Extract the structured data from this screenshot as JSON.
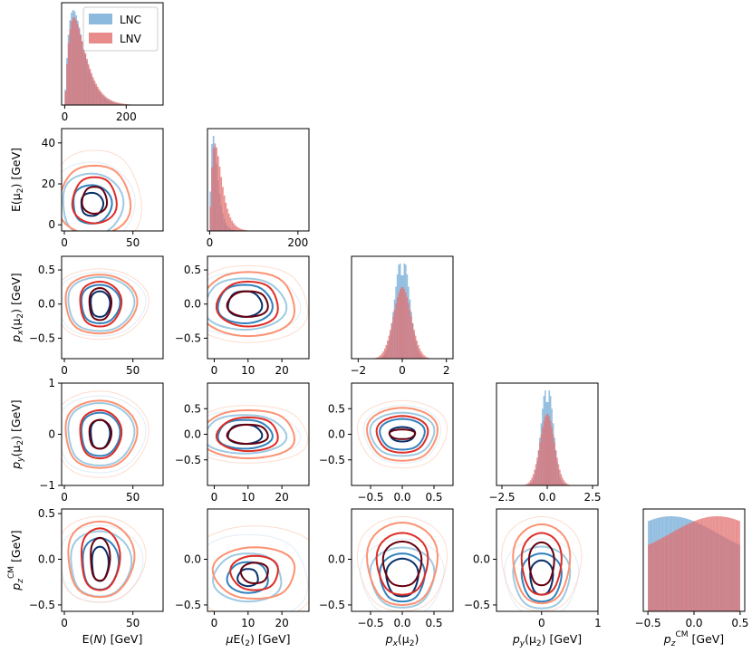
{
  "chart_data": {
    "type": "corner",
    "title": "",
    "variables": [
      "E(N)",
      "E(μ2)",
      "px(μ2)",
      "py(μ2)",
      "pzCM"
    ],
    "xlabels": [
      {
        "main": "E(",
        "italic": "N",
        "rest": ") [GeV]"
      },
      {
        "main": "E(",
        "italic": "μ",
        "sub": "2",
        "rest": ") [GeV]"
      },
      {
        "italic": "p",
        "isub": "x",
        "main": "(μ",
        "sub": "2",
        "rest": ")"
      },
      {
        "italic": "p",
        "isub": "y",
        "main": "(μ",
        "sub": "2",
        "rest": ") [GeV]"
      },
      {
        "italic": "p",
        "isub": "z",
        "sup": "CM",
        "rest": " [GeV]"
      }
    ],
    "ylabels": [
      "",
      "E(μ₂) [GeV]",
      "pₓ(μ₂) [GeV]",
      "pᵧ(μ₂) [GeV]",
      "p_z^CM [GeV]"
    ],
    "ylabel_parts": [
      null,
      {
        "main": "E(μ",
        "sub": "2",
        "rest": ") [GeV]"
      },
      {
        "italic": "p",
        "isub": "x",
        "main": "(μ",
        "sub": "2",
        "rest": ") [GeV]"
      },
      {
        "italic": "p",
        "isub": "y",
        "main": "(μ",
        "sub": "2",
        "rest": ") [GeV]"
      },
      {
        "italic": "p",
        "isub": "z",
        "sup": "CM",
        "rest": " [GeV]"
      }
    ],
    "ranges": [
      [
        -10,
        320
      ],
      [
        -5,
        225
      ],
      [
        -2.3,
        2.3
      ],
      [
        -2.8,
        2.8
      ],
      [
        -0.55,
        0.55
      ]
    ],
    "scatter_ranges": {
      "0": {
        "x": [
          -2,
          72
        ],
        "y": [
          -5,
          320
        ]
      },
      "1": {
        "x": [
          -2,
          28
        ],
        "y": [
          -3,
          47
        ]
      },
      "2": {
        "x": [
          -0.8,
          0.8
        ],
        "y": [
          -0.8,
          0.7
        ]
      },
      "3": {
        "x": [
          -0.8,
          1.0
        ],
        "y": [
          -1.0,
          1.0
        ]
      },
      "4": {
        "x": [
          -0.55,
          0.55
        ],
        "y": [
          -0.55,
          0.55
        ]
      }
    },
    "pair_xranges": [
      [
        -2,
        72
      ],
      [
        -2,
        28
      ],
      [
        -0.8,
        0.8
      ],
      [
        -0.8,
        1.0
      ]
    ],
    "pair_yranges": [
      null,
      [
        -3,
        47
      ],
      [
        -0.8,
        0.7
      ],
      [
        -1.0,
        1.0
      ],
      [
        -0.57,
        0.55
      ]
    ],
    "diag_ticks": [
      [
        0,
        200
      ],
      [
        0,
        200
      ],
      [
        -2,
        0,
        2
      ],
      [
        -2.5,
        0.0,
        2.5
      ],
      [
        -0.5,
        0.0,
        0.5
      ]
    ],
    "diag_tick_labels": [
      [
        "0",
        "200"
      ],
      [
        "0",
        "200"
      ],
      [
        "−2",
        "0",
        "2"
      ],
      [
        "−2.5",
        "0.0",
        "2.5"
      ],
      [
        "−0.5",
        "0.0",
        "0.5"
      ]
    ],
    "col_xticks": [
      {
        "values": [
          0,
          50
        ],
        "labels": [
          "0",
          "50"
        ]
      },
      {
        "values": [
          0,
          10,
          20
        ],
        "labels": [
          "0",
          "10",
          "20"
        ]
      },
      {
        "values": [
          -0.5,
          0.0,
          0.5
        ],
        "labels": [
          "−0.5",
          "0.0",
          "0.5"
        ]
      },
      {
        "values": [
          0,
          1
        ],
        "labels": [
          "0",
          "1"
        ]
      }
    ],
    "row_yticks": [
      null,
      {
        "values": [
          0,
          20,
          40
        ],
        "labels": [
          "0",
          "20",
          "40"
        ]
      },
      {
        "values": [
          -0.5,
          0.0,
          0.5
        ],
        "labels": [
          "−0.5",
          "0.0",
          "0.5"
        ]
      },
      {
        "values": [
          -1,
          0,
          1
        ],
        "labels": [
          "−1",
          "0",
          "1"
        ]
      },
      {
        "values": [
          -0.5,
          0.0,
          0.5
        ],
        "labels": [
          "−0.5",
          "0.0",
          "0.5"
        ]
      }
    ],
    "inner_yticks": {
      "row1": {
        "values": [],
        "labels": []
      },
      "row2": {
        "values": [
          -0.5,
          0.0,
          0.5
        ],
        "labels": [
          "−0.5",
          "0.0",
          "0.5"
        ]
      },
      "row3": {
        "values": [
          -0.5,
          0.0,
          0.5
        ],
        "labels": [
          "−0.5",
          "0.0",
          "0.5"
        ]
      },
      "row4": {
        "values": [
          -0.5,
          0.0
        ],
        "labels": [
          "−0.5",
          "0.0"
        ]
      }
    },
    "legend": {
      "position": "top-right",
      "entries": [
        {
          "name": "LNC",
          "color": "#6fa8d6"
        },
        {
          "name": "LNV",
          "color": "#e26e6e"
        }
      ]
    },
    "series_colors": {
      "LNC": {
        "levels": [
          "#c6dbef",
          "#9ecae1",
          "#3182bd",
          "#08306b"
        ]
      },
      "LNV": {
        "levels": [
          "#fcbba1",
          "#fc9272",
          "#de2d26",
          "#67000d"
        ]
      }
    },
    "diagonal_hist": [
      {
        "var": 0,
        "LNC": {
          "peak": 28,
          "width": 28,
          "skew": 1
        },
        "LNV": {
          "peak": 30,
          "width": 32,
          "skew": 1
        }
      },
      {
        "var": 1,
        "LNC": {
          "peak": 8,
          "width": 18,
          "skew": 1
        },
        "LNV": {
          "peak": 12,
          "width": 24,
          "skew": 1
        }
      },
      {
        "var": 2,
        "LNC": {
          "peak": 0,
          "width": 0.35,
          "skew": 0
        },
        "LNV": {
          "peak": 0,
          "width": 0.4,
          "skew": 0
        }
      },
      {
        "var": 3,
        "LNC": {
          "peak": 0,
          "width": 0.35,
          "skew": 0
        },
        "LNV": {
          "peak": 0,
          "width": 0.4,
          "skew": 0
        }
      },
      {
        "var": 4,
        "LNC": {
          "peak": -0.25,
          "width": 0.5,
          "skew": 0
        },
        "LNV": {
          "peak": 0.25,
          "width": 0.5,
          "skew": 0
        }
      }
    ],
    "contour_cells": [
      {
        "row": 1,
        "col": 0,
        "LNC": {
          "cx": 20,
          "cy": 10,
          "rx": [
            30,
            22,
            14,
            8
          ],
          "ry": [
            22,
            16,
            10,
            6
          ]
        },
        "LNV": {
          "cx": 22,
          "cy": 12,
          "rx": [
            34,
            26,
            16,
            9
          ],
          "ry": [
            26,
            18,
            12,
            7
          ]
        }
      },
      {
        "row": 2,
        "col": 0,
        "LNC": {
          "cx": 26,
          "cy": 0,
          "rx": [
            32,
            24,
            14,
            7
          ],
          "ry": [
            0.5,
            0.42,
            0.3,
            0.2
          ]
        },
        "LNV": {
          "cx": 26,
          "cy": 0,
          "rx": [
            34,
            26,
            15,
            8
          ],
          "ry": [
            0.55,
            0.46,
            0.35,
            0.25
          ]
        }
      },
      {
        "row": 2,
        "col": 1,
        "LNC": {
          "cx": 9,
          "cy": 0,
          "rx": [
            16,
            12,
            8,
            5
          ],
          "ry": [
            0.5,
            0.4,
            0.3,
            0.2
          ]
        },
        "LNV": {
          "cx": 10,
          "cy": 0,
          "rx": [
            18,
            14,
            9,
            6
          ],
          "ry": [
            0.6,
            0.5,
            0.35,
            0.2
          ]
        }
      },
      {
        "row": 3,
        "col": 0,
        "LNC": {
          "cx": 26,
          "cy": 0,
          "rx": [
            32,
            24,
            14,
            7
          ],
          "ry": [
            0.8,
            0.65,
            0.45,
            0.3
          ]
        },
        "LNV": {
          "cx": 26,
          "cy": 0,
          "rx": [
            34,
            26,
            15,
            8
          ],
          "ry": [
            0.9,
            0.7,
            0.5,
            0.3
          ]
        }
      },
      {
        "row": 3,
        "col": 1,
        "LNC": {
          "cx": 9,
          "cy": 0,
          "rx": [
            16,
            12,
            8,
            5
          ],
          "ry": [
            0.5,
            0.4,
            0.3,
            0.2
          ]
        },
        "LNV": {
          "cx": 10,
          "cy": 0,
          "rx": [
            18,
            14,
            9,
            6
          ],
          "ry": [
            0.6,
            0.5,
            0.35,
            0.2
          ]
        }
      },
      {
        "row": 3,
        "col": 2,
        "LNC": {
          "cx": 0,
          "cy": 0,
          "rx": [
            0.6,
            0.5,
            0.35,
            0.2
          ],
          "ry": [
            0.6,
            0.45,
            0.32,
            0.15
          ]
        },
        "LNV": {
          "cx": 0,
          "cy": 0,
          "rx": [
            0.7,
            0.55,
            0.4,
            0.2
          ],
          "ry": [
            0.7,
            0.55,
            0.38,
            0.1
          ]
        }
      },
      {
        "row": 4,
        "col": 0,
        "LNC": {
          "cx": 26,
          "cy": -0.05,
          "rx": [
            30,
            22,
            13,
            6
          ],
          "ry": [
            0.45,
            0.38,
            0.3,
            0.2
          ]
        },
        "LNV": {
          "cx": 26,
          "cy": 0.0,
          "rx": [
            32,
            24,
            14,
            7
          ],
          "ry": [
            0.5,
            0.44,
            0.36,
            0.25
          ]
        }
      },
      {
        "row": 4,
        "col": 1,
        "LNC": {
          "cx": 10,
          "cy": -0.2,
          "rx": [
            18,
            10,
            6,
            3
          ],
          "ry": [
            0.5,
            0.28,
            0.18,
            0.1
          ]
        },
        "LNV": {
          "cx": 12,
          "cy": -0.15,
          "rx": [
            20,
            12,
            7,
            4
          ],
          "ry": [
            0.55,
            0.3,
            0.2,
            0.12
          ]
        }
      },
      {
        "row": 4,
        "col": 2,
        "LNC": {
          "cx": 0,
          "cy": -0.2,
          "rx": [
            0.65,
            0.5,
            0.35,
            0.25
          ],
          "ry": [
            0.45,
            0.35,
            0.28,
            0.22
          ]
        },
        "LNV": {
          "cx": 0,
          "cy": -0.05,
          "rx": [
            0.7,
            0.55,
            0.4,
            0.3
          ],
          "ry": [
            0.55,
            0.48,
            0.36,
            0.26
          ]
        }
      },
      {
        "row": 4,
        "col": 3,
        "LNC": {
          "cx": 0,
          "cy": -0.2,
          "rx": [
            0.65,
            0.5,
            0.35,
            0.2
          ],
          "ry": [
            0.45,
            0.36,
            0.28,
            0.2
          ]
        },
        "LNV": {
          "cx": 0,
          "cy": -0.05,
          "rx": [
            0.7,
            0.5,
            0.35,
            0.22
          ],
          "ry": [
            0.55,
            0.46,
            0.36,
            0.25
          ]
        }
      }
    ]
  }
}
